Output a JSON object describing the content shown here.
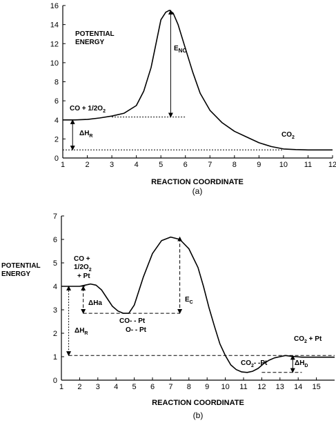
{
  "chart_data": [
    {
      "type": "line",
      "caption": "(a)",
      "xlabel": "REACTION COORDINATE",
      "ylabel_block": [
        "POTENTIAL",
        "ENERGY"
      ],
      "xlim": [
        1,
        12
      ],
      "ylim": [
        0,
        16
      ],
      "x_ticks": [
        1,
        2,
        3,
        4,
        5,
        6,
        7,
        8,
        9,
        10,
        11,
        12
      ],
      "y_ticks": [
        0,
        2,
        4,
        6,
        8,
        10,
        12,
        14,
        16
      ],
      "series": [
        {
          "x": [
            1,
            1.5,
            2,
            2.5,
            3,
            3.5,
            4,
            4.3,
            4.6,
            4.8,
            5,
            5.2,
            5.35,
            5.5,
            5.7,
            6,
            6.3,
            6.6,
            7,
            7.5,
            8,
            8.5,
            9,
            9.5,
            10,
            10.5,
            11,
            11.5,
            12
          ],
          "y": [
            4.0,
            4.0,
            4.05,
            4.2,
            4.4,
            4.7,
            5.5,
            7.0,
            9.5,
            12.0,
            14.5,
            15.3,
            15.5,
            15.2,
            14.0,
            11.5,
            9.0,
            6.8,
            5.0,
            3.7,
            2.8,
            2.2,
            1.6,
            1.2,
            0.95,
            0.88,
            0.85,
            0.85,
            0.85
          ]
        }
      ],
      "annotations": {
        "reactant": "CO + 1/2O",
        "reactant_sub": "2",
        "product": "CO",
        "product_sub": "2",
        "barrier": "E",
        "barrier_sub": "NC",
        "delta": "ΔH",
        "delta_sub": "R"
      },
      "guides": {
        "reactant_level_y": 4.3,
        "reactant_level_x": [
          3,
          6
        ],
        "product_level_y": 0.85,
        "product_level_x": [
          1,
          10
        ],
        "barrier_arrow": {
          "x": 5.4,
          "y": [
            4.3,
            15.5
          ]
        },
        "delta_arrow": {
          "x": 1.4,
          "y": [
            0.85,
            4.0
          ]
        }
      }
    },
    {
      "type": "line",
      "caption": "(b)",
      "xlabel": "REACTION COORDINATE",
      "ylabel_block": [
        "POTENTIAL",
        "ENERGY"
      ],
      "xlim": [
        1,
        16
      ],
      "ylim": [
        0,
        7
      ],
      "x_ticks": [
        1,
        2,
        3,
        4,
        5,
        6,
        7,
        8,
        9,
        10,
        11,
        12,
        13,
        14,
        15
      ],
      "y_ticks": [
        0,
        1,
        2,
        3,
        4,
        5,
        6,
        7
      ],
      "series": [
        {
          "x": [
            1,
            1.5,
            2,
            2.3,
            2.6,
            2.9,
            3.2,
            3.5,
            3.8,
            4.1,
            4.4,
            4.7,
            5.0,
            5.5,
            6.0,
            6.5,
            7.0,
            7.5,
            8.0,
            8.5,
            8.8,
            9.1,
            9.4,
            9.7,
            10.0,
            10.3,
            10.6,
            10.9,
            11.2,
            11.5,
            11.8,
            12.1,
            12.4,
            12.7,
            13.0,
            13.3,
            13.6,
            13.9,
            14.2,
            14.6,
            15,
            15.5,
            16
          ],
          "y": [
            4.0,
            4.0,
            4.0,
            4.05,
            4.1,
            4.05,
            3.85,
            3.5,
            3.15,
            2.95,
            2.85,
            2.85,
            3.2,
            4.4,
            5.4,
            5.95,
            6.1,
            6.0,
            5.6,
            4.8,
            4.0,
            3.1,
            2.3,
            1.55,
            1.05,
            0.65,
            0.45,
            0.35,
            0.33,
            0.38,
            0.5,
            0.7,
            0.85,
            0.95,
            1.0,
            1.05,
            1.02,
            1.0,
            0.98,
            0.98,
            0.98,
            0.98,
            0.98
          ]
        }
      ],
      "annotations": {
        "reactant_lines": [
          "CO +",
          "1/2O",
          "+ Pt"
        ],
        "reactant_sub": "2",
        "intermediate_lines": [
          "CO- - Pt",
          "O- - Pt"
        ],
        "product": "CO",
        "product_suffix": " + Pt",
        "product_sub": "2",
        "adsorbed_product": "CO",
        "adsorbed_product_sub": "2",
        "adsorbed_product_suffix": "- -Pt",
        "adsorption": "ΔHa",
        "barrier": "E",
        "barrier_sub": "C",
        "delta": "ΔH",
        "delta_sub": "R",
        "desorption": "ΔH",
        "desorption_sub": "D"
      },
      "guides": {
        "intermediate_level_y": 2.85,
        "intermediate_level_x": [
          2.2,
          7.5
        ],
        "product_level_y": 1.05,
        "product_level_x": [
          1.4,
          16
        ],
        "adsorbed_level_y": 0.33,
        "adsorbed_level_x": [
          12,
          14.2
        ],
        "reactant_stub_y": 4.0,
        "reactant_stub_x": [
          1.3,
          2.3
        ],
        "barrier_arrow": {
          "x": 7.5,
          "y": [
            2.85,
            6.1
          ]
        },
        "adsorption_arrow": {
          "x": 2.2,
          "y": [
            2.85,
            4.0
          ]
        },
        "delta_arrow": {
          "x": 1.4,
          "y": [
            1.05,
            4.0
          ]
        },
        "desorption_arrow": {
          "x": 13.7,
          "y": [
            0.33,
            1.05
          ]
        }
      }
    }
  ]
}
